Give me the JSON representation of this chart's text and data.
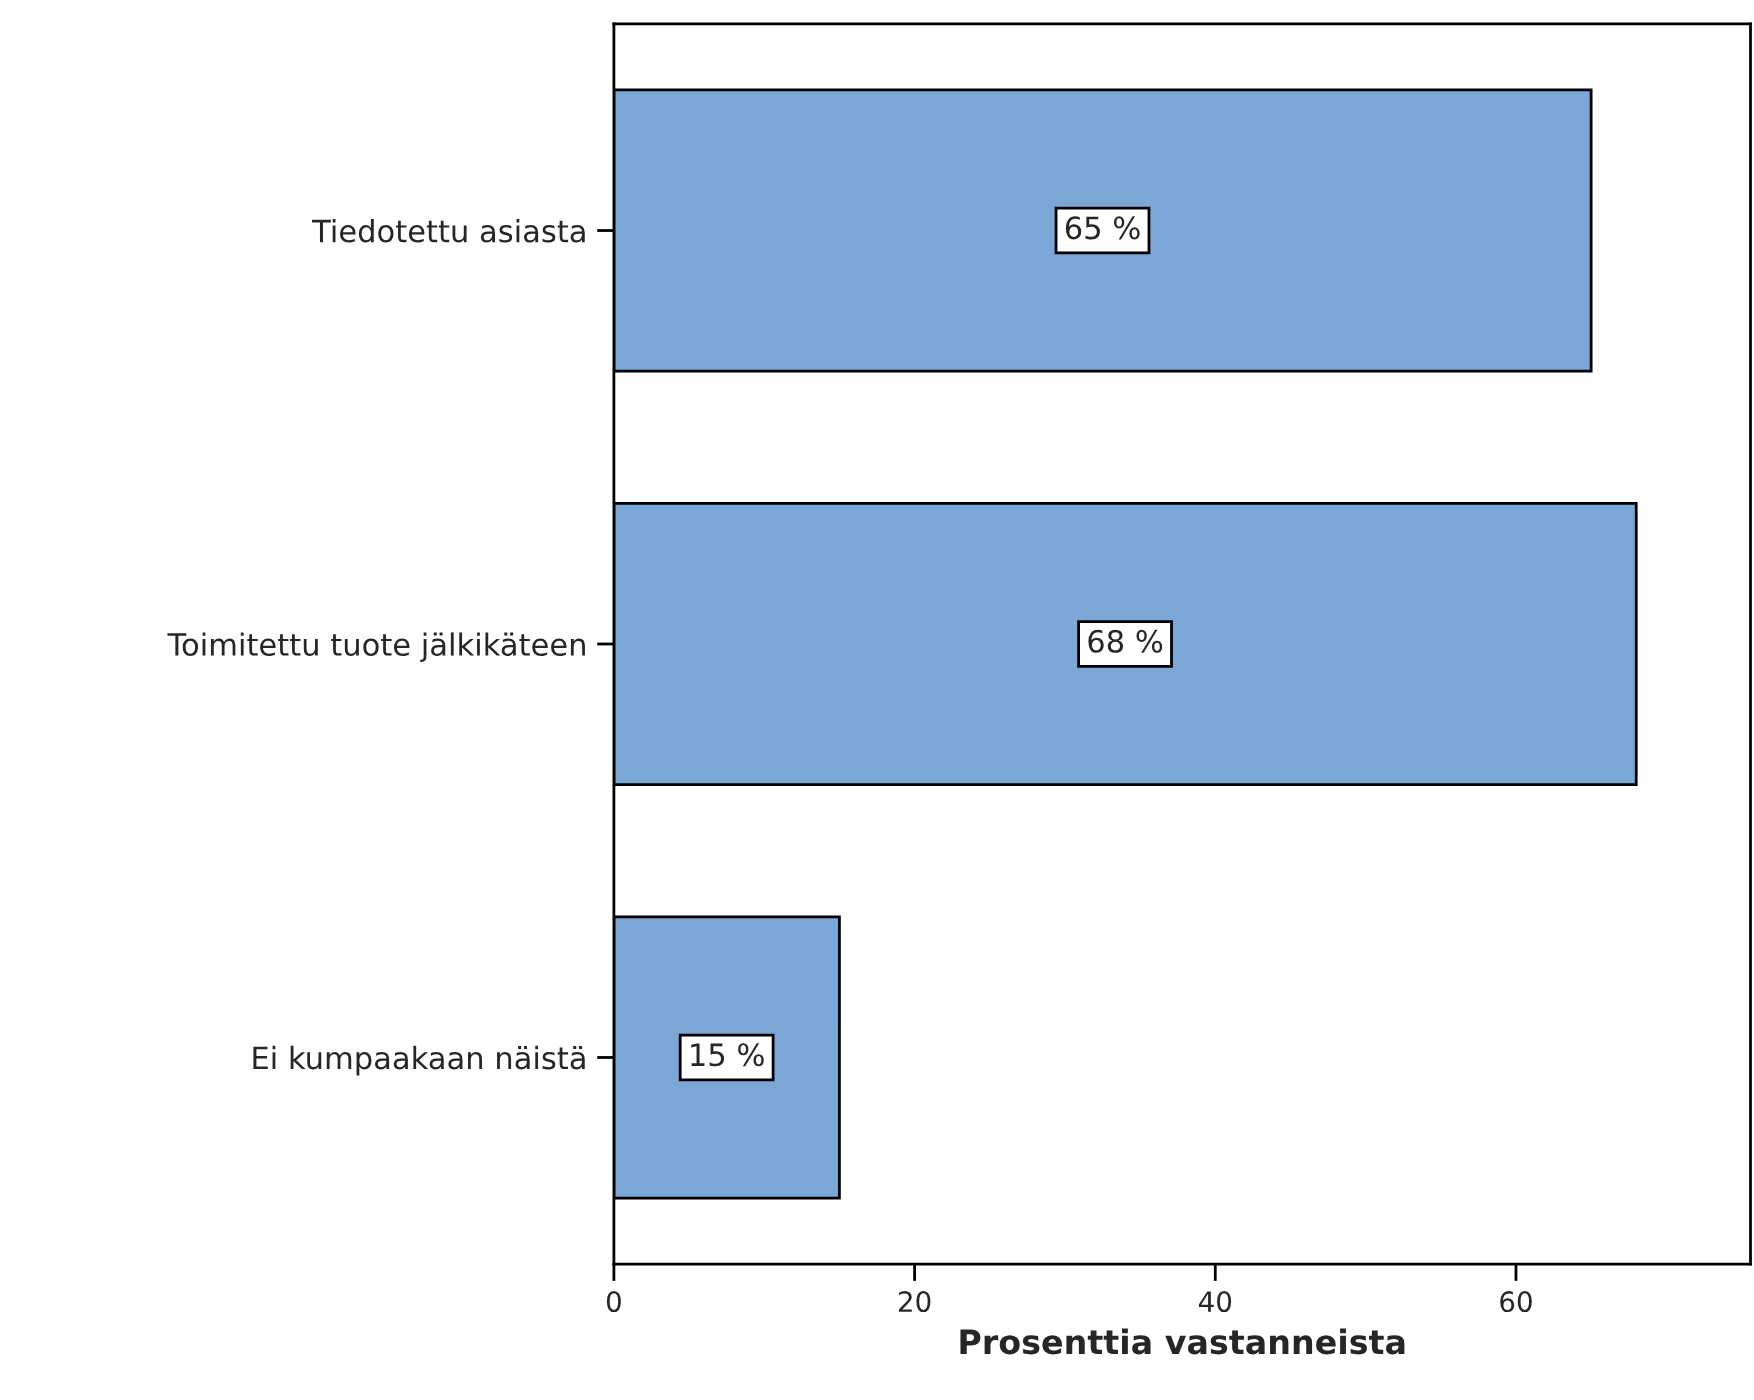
{
  "chart_data": {
    "type": "bar",
    "orientation": "horizontal",
    "categories": [
      "Tiedotettu asiasta",
      "Toimitettu tuote jälkikäteen",
      "Ei kumpaakaan näistä"
    ],
    "values": [
      65,
      68,
      15
    ],
    "value_labels": [
      "65 %",
      "68 %",
      "15 %"
    ],
    "color": "#7ba7d7",
    "xlim": [
      0,
      75.6
    ],
    "xticks": [
      0,
      20,
      40,
      60
    ],
    "xlabel": "Prosenttia vastanneista",
    "grid": false
  }
}
